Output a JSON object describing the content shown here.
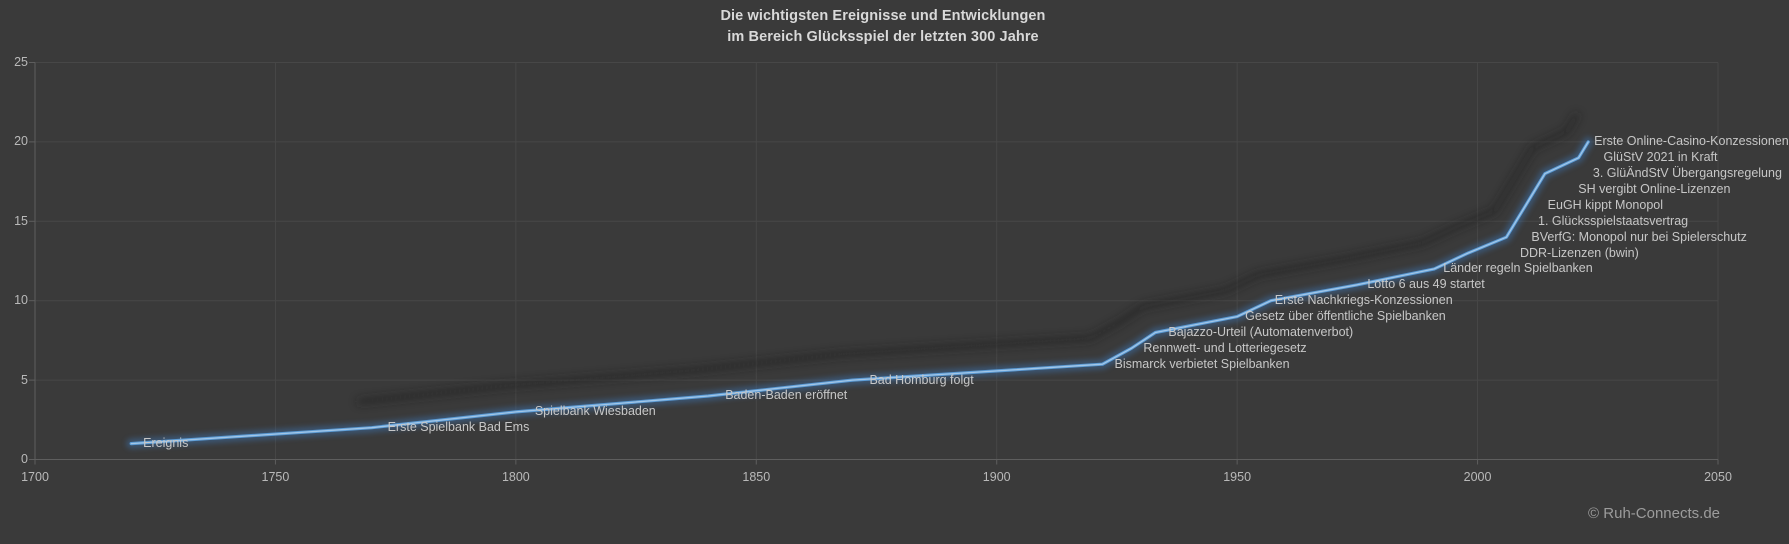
{
  "page": {
    "background": "#3A3A3A"
  },
  "header": {
    "title_line1": "Die wichtigsten Ereignisse und Entwicklungen",
    "title_line2": "im Bereich Glücksspiel der letzten 300 Jahre"
  },
  "footer": {
    "copyright": "© Ruh-Connects.de"
  },
  "chart_data": {
    "type": "line",
    "title": "Die wichtigsten Ereignisse und Entwicklungen im Bereich Glücksspiel der letzten 300 Jahre",
    "series_name": "Ereignis",
    "xlabel": "",
    "ylabel": "",
    "xlim": [
      1700,
      2050
    ],
    "ylim": [
      0,
      25
    ],
    "xticks": [
      1700,
      1750,
      1800,
      1850,
      1900,
      1950,
      2000,
      2050
    ],
    "yticks": [
      0,
      5,
      10,
      15,
      20,
      25
    ],
    "grid": true,
    "legend": "none",
    "line_color": "#5B9BD5",
    "line_glow_color": "#3D6FA8",
    "line_core_color": "#AACBE9",
    "shadow_color": "#1F1F1F",
    "points": [
      {
        "label": "Ereignis",
        "year": 1720,
        "n": 1
      },
      {
        "label": "Erste Spielbank Bad Ems",
        "year": 1770,
        "n": 2
      },
      {
        "label": "Spielbank Wiesbaden",
        "year": 1800,
        "n": 3
      },
      {
        "label": "Baden-Baden eröffnet",
        "year": 1840,
        "n": 4
      },
      {
        "label": "Bad Homburg folgt",
        "year": 1870,
        "n": 5
      },
      {
        "label": "Bismarck verbietet Spielbanken",
        "year": 1922,
        "n": 6
      },
      {
        "label": "Rennwett- und Lotteriegesetz",
        "year": 1928,
        "n": 7
      },
      {
        "label": "Bajazzo-Urteil (Automatenverbot)",
        "year": 1933,
        "n": 8
      },
      {
        "label": "Gesetz über öffentliche Spielbanken",
        "year": 1950,
        "n": 9
      },
      {
        "label": "Erste Nachkriegs-Konzessionen",
        "year": 1957,
        "n": 10
      },
      {
        "label": "Lotto 6 aus 49 startet",
        "year": 1975,
        "n": 11
      },
      {
        "label": "Länder regeln Spielbanken",
        "year": 1991,
        "n": 12
      },
      {
        "label": "DDR-Lizenzen (bwin)",
        "year": 1998,
        "n": 13
      },
      {
        "label": "BVerfG: Monopol nur bei Spielerschutz",
        "year": 2006,
        "n": 14
      },
      {
        "label": "1. Glücksspielstaatsvertrag",
        "year": 2008,
        "n": 15
      },
      {
        "label": "EuGH kippt Monopol",
        "year": 2010,
        "n": 16
      },
      {
        "label": "SH vergibt Online-Lizenzen",
        "year": 2012,
        "n": 17
      },
      {
        "label": "3. GlüÄndStV Übergangsregelung",
        "year": 2014,
        "n": 18
      },
      {
        "label": "GlüStV 2021 in Kraft",
        "year": 2021,
        "n": 19
      },
      {
        "label": "Erste Online-Casino-Konzessionen",
        "year": 2023,
        "n": 20
      }
    ]
  }
}
